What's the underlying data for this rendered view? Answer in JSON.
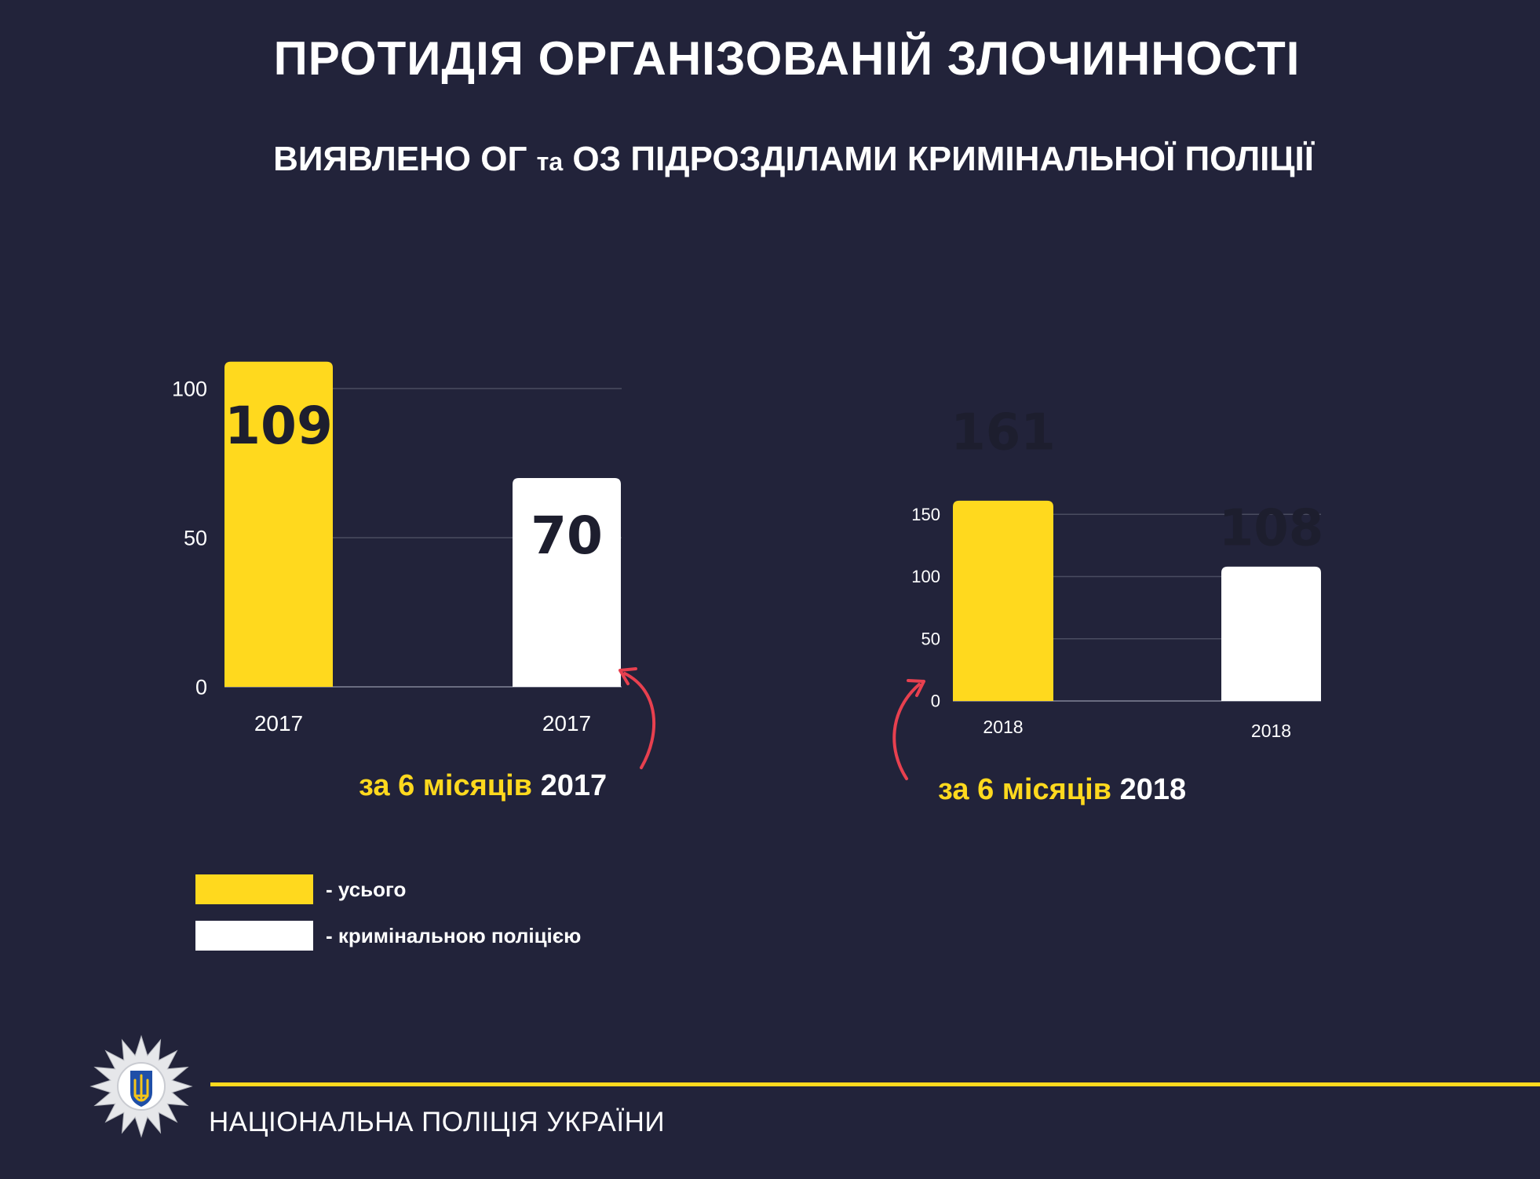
{
  "header": {
    "title": "ПРОТИДІЯ ОРГАНІЗОВАНІЙ ЗЛОЧИННОСТІ",
    "subtitle_part1": "ВИЯВЛЕНО ОГ",
    "subtitle_small": "та",
    "subtitle_part2": "ОЗ ПІДРОЗДІЛАМИ КРИМІНАЛЬНОЇ ПОЛІЦІЇ"
  },
  "chart_data": [
    {
      "type": "bar",
      "categories": [
        "2017",
        "2017"
      ],
      "values": [
        109,
        70
      ],
      "series_roles": [
        "усього",
        "кримінальною поліцією"
      ],
      "bar_colors": [
        "#ffd91e",
        "#ffffff"
      ],
      "ylim": [
        0,
        109
      ],
      "yticks": [
        0,
        50,
        100
      ],
      "grid": true,
      "caption_highlight": "за 6 місяців",
      "caption_year": "2017"
    },
    {
      "type": "bar",
      "categories": [
        "2018",
        "2018"
      ],
      "values": [
        161,
        108
      ],
      "series_roles": [
        "усього",
        "кримінальною поліцією"
      ],
      "bar_colors": [
        "#ffd91e",
        "#ffffff"
      ],
      "ylim": [
        0,
        161
      ],
      "yticks": [
        0,
        50,
        100,
        150
      ],
      "grid": true,
      "caption_highlight": "за 6 місяців",
      "caption_year": "2018"
    }
  ],
  "legend": [
    {
      "label": "- усього",
      "color": "#ffd91e"
    },
    {
      "label": "- кримінальною поліцією",
      "color": "#ffffff"
    }
  ],
  "footer": {
    "organization": "НАЦІОНАЛЬНА ПОЛІЦІЯ УКРАЇНИ"
  },
  "colors": {
    "background": "#22233a",
    "accent": "#ffd91e",
    "arrow": "#e8404f",
    "value_text": "#1d1e2e"
  },
  "icons": {
    "emblem": "police-star-emblem-icon",
    "arrow": "curved-arrow-icon"
  }
}
